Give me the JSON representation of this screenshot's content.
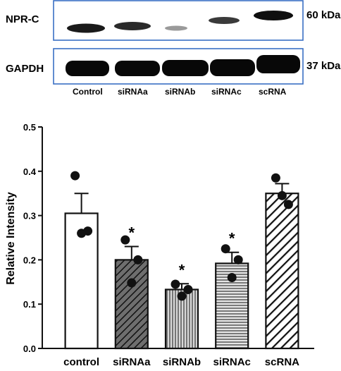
{
  "blot": {
    "proteins": [
      {
        "name": "NPR-C",
        "mw": "60 kDa"
      },
      {
        "name": "GAPDH",
        "mw": "37 kDa"
      }
    ],
    "lanes": [
      "Control",
      "siRNAa",
      "siRNAb",
      "siRNAc",
      "scRNA"
    ],
    "frame_color": "#3a6fc4"
  },
  "chart_data": {
    "type": "bar",
    "ylabel": "Relative Intensity",
    "xlabel": "",
    "ylim": [
      0,
      0.5
    ],
    "yticks": [
      "0.0",
      "0.1",
      "0.2",
      "0.3",
      "0.4",
      "0.5"
    ],
    "categories": [
      "control",
      "siRNAa",
      "siRNAb",
      "siRNAc",
      "scRNA"
    ],
    "values": [
      0.305,
      0.2,
      0.133,
      0.192,
      0.35
    ],
    "errors": [
      0.045,
      0.03,
      0.013,
      0.025,
      0.022
    ],
    "points": [
      [
        0.39,
        0.265,
        0.26
      ],
      [
        0.245,
        0.2,
        0.148
      ],
      [
        0.145,
        0.133,
        0.118
      ],
      [
        0.225,
        0.2,
        0.16
      ],
      [
        0.385,
        0.325,
        0.345
      ]
    ],
    "patterns": [
      "none",
      "diagonal-dark",
      "vertical",
      "horizontal",
      "diagonal-wide"
    ],
    "significance": [
      "",
      "*",
      "*",
      "*",
      ""
    ],
    "grid": false
  }
}
